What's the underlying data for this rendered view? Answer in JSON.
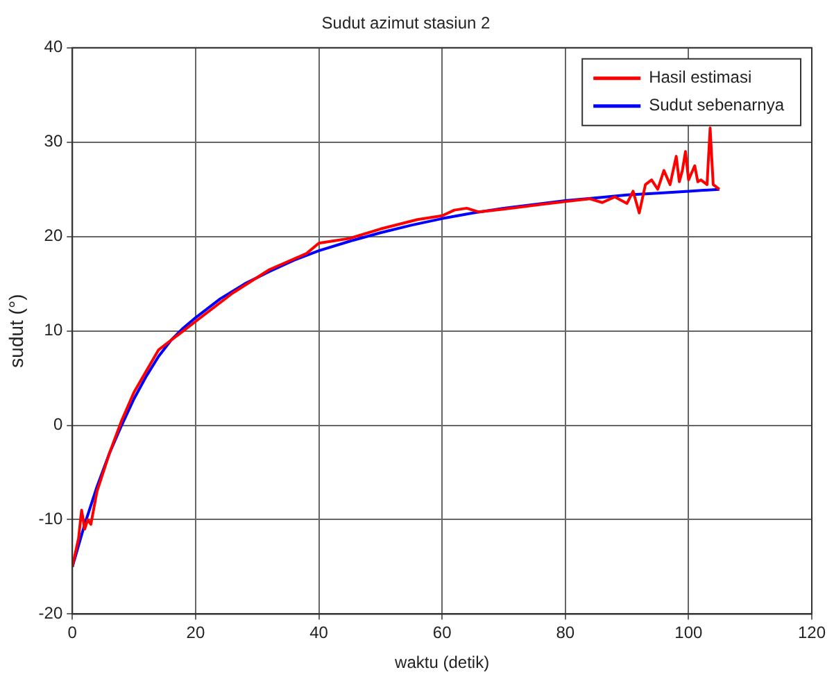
{
  "chart_data": {
    "type": "line",
    "title": "Sudut azimut stasiun 2",
    "xlabel": "waktu (detik)",
    "ylabel": "sudut (°)",
    "series": [
      {
        "name": "Hasil estimasi",
        "color": "#ff0000",
        "x": [
          0,
          1,
          1.5,
          2,
          2.5,
          3,
          4,
          6,
          8,
          10,
          14,
          20,
          26,
          32,
          38,
          40,
          42,
          45,
          50,
          56,
          60,
          62,
          64,
          66,
          70,
          76,
          80,
          84,
          86,
          88,
          90,
          91,
          92,
          93,
          94,
          95,
          96,
          97,
          98,
          98.5,
          99,
          99.5,
          100,
          101,
          101.5,
          102,
          103,
          103.5,
          104,
          105
        ],
        "values": [
          -15,
          -12,
          -9,
          -11,
          -10,
          -10.5,
          -7,
          -3,
          0.5,
          3.5,
          8,
          11,
          14,
          16.5,
          18.2,
          19.3,
          19.5,
          19.8,
          20.8,
          21.8,
          22.2,
          22.8,
          23,
          22.6,
          22.9,
          23.4,
          23.7,
          24,
          23.6,
          24.2,
          23.5,
          24.8,
          22.5,
          25.5,
          26,
          25,
          27,
          25.5,
          28.5,
          25.8,
          27,
          29,
          26,
          27.5,
          25.8,
          26,
          25.5,
          31.5,
          25.5,
          25
        ]
      },
      {
        "name": "Sudut sebenarnya",
        "color": "#0000ff",
        "x": [
          0,
          2,
          4,
          6,
          8,
          10,
          12,
          14,
          16,
          18,
          20,
          24,
          28,
          32,
          36,
          40,
          45,
          50,
          55,
          60,
          65,
          70,
          75,
          80,
          85,
          90,
          95,
          100,
          105
        ],
        "values": [
          -15,
          -10.5,
          -6.5,
          -3,
          0,
          2.8,
          5.2,
          7.3,
          9,
          10.3,
          11.4,
          13.4,
          15,
          16.3,
          17.5,
          18.5,
          19.5,
          20.4,
          21.2,
          21.9,
          22.5,
          23,
          23.4,
          23.8,
          24.1,
          24.4,
          24.6,
          24.8,
          25
        ]
      }
    ],
    "xlim": [
      0,
      120
    ],
    "xticks": [
      0,
      20,
      40,
      60,
      80,
      100,
      120
    ],
    "ylim": [
      -20,
      40
    ],
    "yticks": [
      -20,
      -10,
      0,
      10,
      20,
      30,
      40
    ],
    "grid": true,
    "legend": "top right",
    "line_style": "solid",
    "marker": "none"
  }
}
